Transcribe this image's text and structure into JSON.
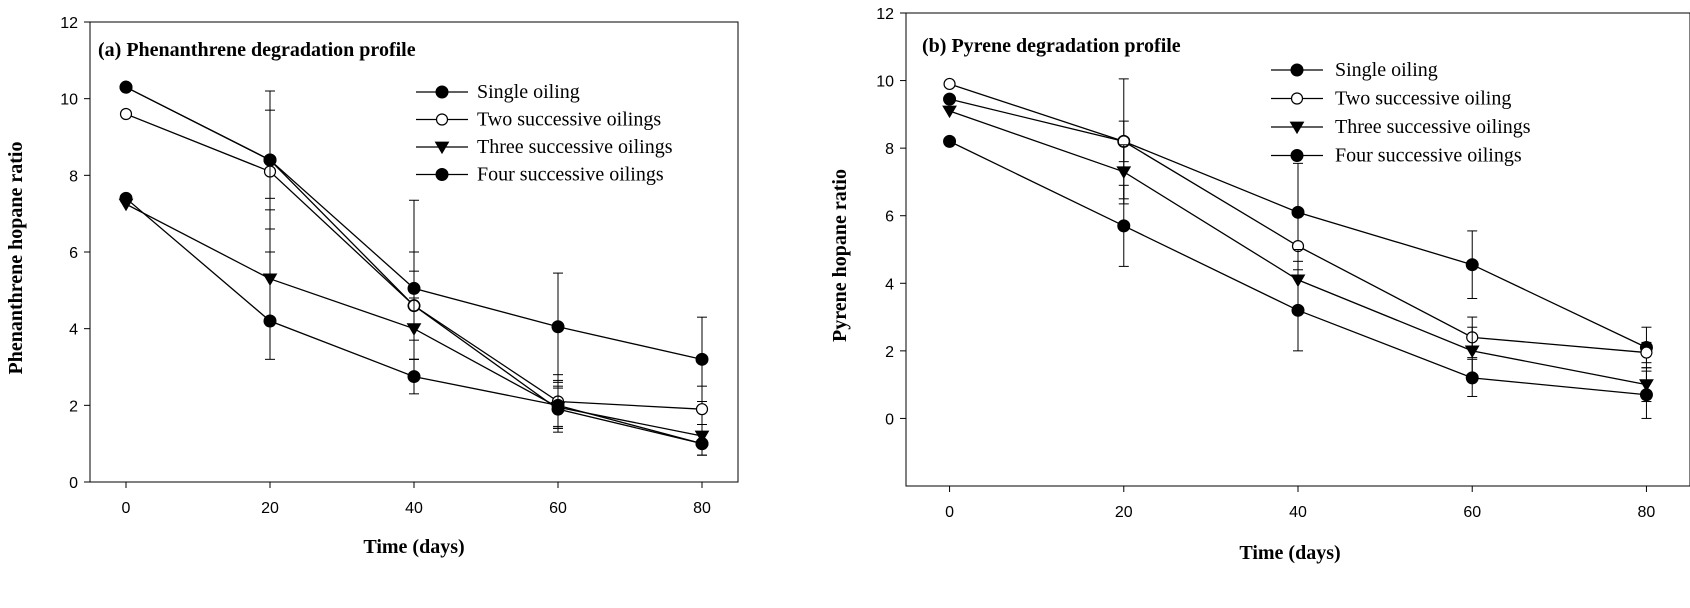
{
  "chart_data": [
    {
      "type": "line",
      "title": "(a) Phenanthrene degradation profile",
      "xlabel": "Time (days)",
      "ylabel": "Phenanthrene hopane ratio",
      "x": [
        0,
        20,
        40,
        60,
        80
      ],
      "xlim": [
        -5,
        85
      ],
      "ylim": [
        0,
        12
      ],
      "xticks": [
        0,
        20,
        40,
        60,
        80
      ],
      "yticks": [
        0,
        2,
        4,
        6,
        8,
        10,
        12
      ],
      "grid": false,
      "legend_position": "top-right",
      "series": [
        {
          "name": "Single oiling",
          "marker": "filled-circle",
          "values": [
            10.3,
            8.4,
            4.6,
            1.9,
            1.0
          ],
          "errors": [
            0,
            1.3,
            0.9,
            0.6,
            0.3
          ]
        },
        {
          "name": "Two successive oilings",
          "marker": "open-circle",
          "values": [
            9.6,
            8.1,
            4.6,
            2.1,
            1.9
          ],
          "errors": [
            0,
            2.1,
            1.4,
            0.7,
            0.6
          ]
        },
        {
          "name": "Three successive oilings",
          "marker": "filled-triangle-down",
          "values": [
            7.25,
            5.3,
            4.0,
            1.95,
            1.2
          ],
          "errors": [
            0,
            2.1,
            0.8,
            0.5,
            0.3
          ]
        },
        {
          "name": "Four successive oilings",
          "marker": "filled-circle",
          "values": [
            7.4,
            4.2,
            2.75,
            2.0,
            1.0
          ],
          "errors": [
            0,
            0,
            0.45,
            0.6,
            0.3
          ]
        },
        {
          "name": "",
          "marker": "filled-circle",
          "legend": false,
          "values": [
            10.3,
            8.4,
            5.05,
            4.05,
            3.2
          ],
          "errors": [
            0,
            1.8,
            2.3,
            1.4,
            1.1
          ]
        }
      ]
    },
    {
      "type": "line",
      "title": "(b) Pyrene degradation profile",
      "xlabel": "Time (days)",
      "ylabel": "Pyrene hopane ratio",
      "x": [
        0,
        20,
        40,
        60,
        80
      ],
      "xlim": [
        -5,
        85
      ],
      "ylim": [
        -2,
        12
      ],
      "xticks": [
        0,
        20,
        40,
        60,
        80
      ],
      "yticks": [
        0,
        2,
        4,
        6,
        8,
        10,
        12
      ],
      "grid": false,
      "legend_position": "top-right",
      "series": [
        {
          "name": "Single oiling",
          "marker": "filled-circle",
          "values": [
            9.45,
            8.2,
            6.1,
            4.55,
            2.1
          ],
          "errors": [
            0,
            1.85,
            1.45,
            1.0,
            0.6
          ]
        },
        {
          "name": "Two successive oiling",
          "marker": "open-circle",
          "values": [
            9.9,
            8.2,
            5.1,
            2.4,
            1.95
          ],
          "errors": [
            0,
            0.6,
            0.9,
            0.6,
            0.3
          ]
        },
        {
          "name": "Three successive oilings",
          "marker": "filled-triangle-down",
          "values": [
            9.1,
            7.3,
            4.1,
            2.0,
            1.0
          ],
          "errors": [
            0,
            0.8,
            0.9,
            0.7,
            0.5
          ]
        },
        {
          "name": "Four successive oilings",
          "marker": "filled-circle",
          "values": [
            8.2,
            5.7,
            3.2,
            1.2,
            0.7
          ],
          "errors": [
            0,
            1.2,
            1.2,
            0.55,
            0.7
          ]
        }
      ]
    }
  ]
}
